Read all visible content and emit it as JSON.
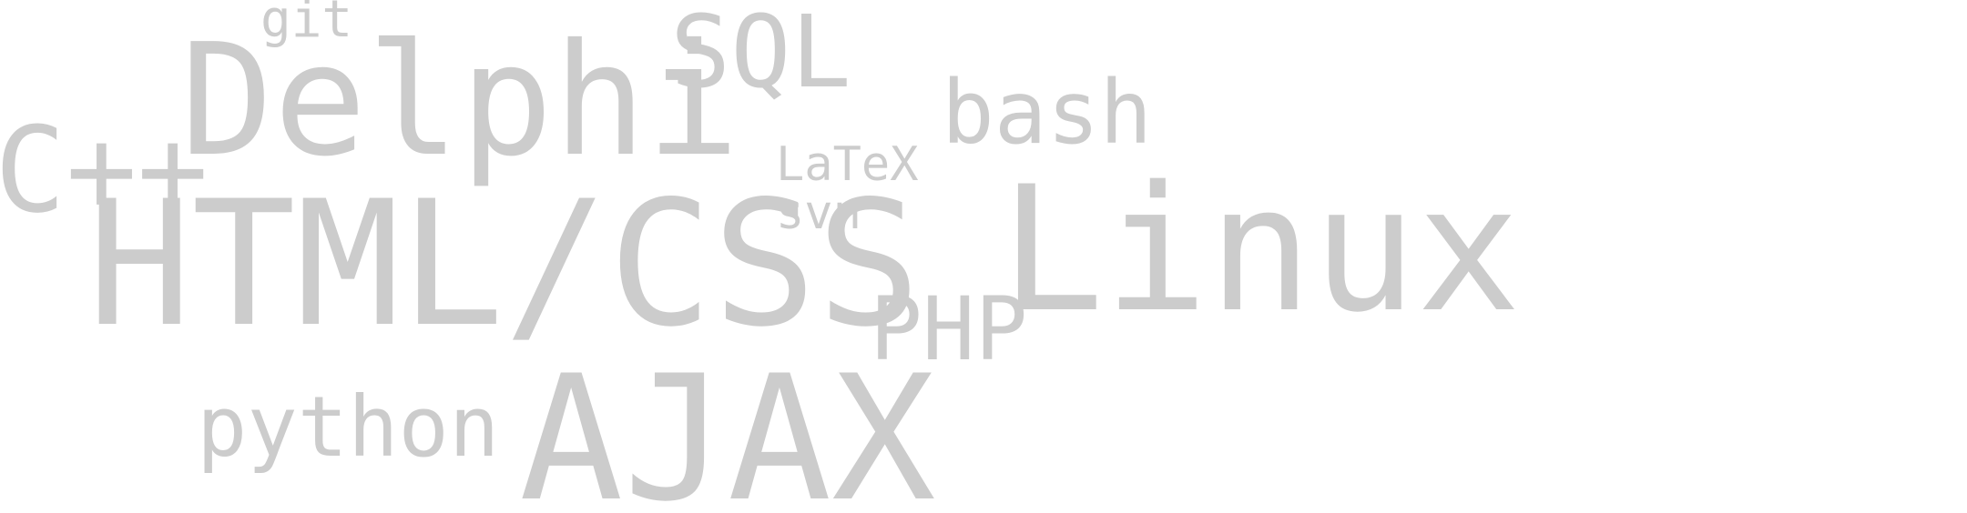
{
  "word_cloud": {
    "words": [
      {
        "id": "git",
        "text": "git"
      },
      {
        "id": "delphi",
        "text": "Delphi"
      },
      {
        "id": "sql",
        "text": "SQL"
      },
      {
        "id": "cpp",
        "text": "C++"
      },
      {
        "id": "latex",
        "text": "LaTeX"
      },
      {
        "id": "bash",
        "text": "bash"
      },
      {
        "id": "svn",
        "text": "svn"
      },
      {
        "id": "html",
        "text": "HTML/CSS"
      },
      {
        "id": "php",
        "text": "PHP"
      },
      {
        "id": "linux",
        "text": "Linux"
      },
      {
        "id": "python",
        "text": "python"
      },
      {
        "id": "ajax",
        "text": "AJAX"
      }
    ],
    "text_color": "#cccccc",
    "background_color": "#ffffff"
  }
}
